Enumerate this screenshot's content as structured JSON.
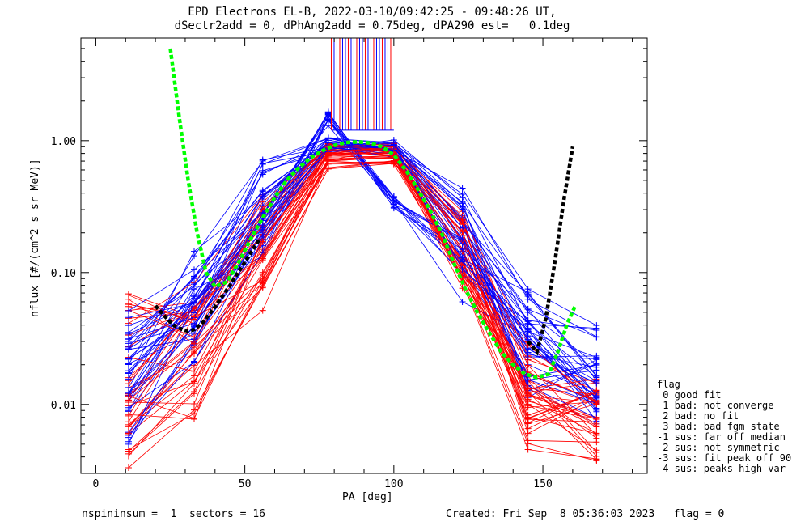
{
  "header": {
    "title_line1": "EPD Electrons EL-B, 2022-03-10/09:42:25 - 09:48:26 UT,",
    "title_line2": "dSectr2add = 0, dPhAng2add = 0.75deg, dPA290_est=   0.1deg"
  },
  "footer": {
    "left": "nspininsum =  1  sectors = 16",
    "right": "Created: Fri Sep  8 05:36:03 2023   flag = 0"
  },
  "legend": {
    "title": "flag",
    "items": [
      " 0 good fit",
      " 1 bad: not converge",
      " 2 bad: no fit",
      " 3 bad: bad fgm state",
      "-1 sus: far off median",
      "-2 sus: not symmetric",
      "-3 sus: fit peak off 90",
      "-4 sus: peaks high var"
    ]
  },
  "chart_data": {
    "type": "line",
    "xlabel": "PA [deg]",
    "ylabel": "nflux [#/(cm^2 s sr MeV)]",
    "xlim": [
      -5,
      185
    ],
    "ylim": [
      0.003,
      6
    ],
    "yscale": "log",
    "x_ticks": [
      0,
      50,
      100,
      150
    ],
    "y_ticks": [
      {
        "value": 0.01,
        "label": "0.01"
      },
      {
        "value": 0.1,
        "label": "0.10"
      },
      {
        "value": 1.0,
        "label": "1.00"
      }
    ],
    "pa_sectors": [
      11,
      33,
      56,
      78,
      100,
      123,
      145,
      168
    ],
    "series": [
      {
        "color": "#0000ff",
        "values": [
          0.018,
          0.06,
          0.3,
          0.85,
          0.85,
          0.2,
          0.02,
          0.012
        ]
      },
      {
        "color": "#ff0000",
        "values": [
          0.012,
          0.03,
          0.15,
          0.8,
          0.8,
          0.15,
          0.012,
          0.008
        ]
      },
      {
        "color": "#0000ff",
        "values": [
          0.03,
          0.09,
          0.42,
          0.95,
          0.9,
          0.25,
          0.05,
          0.02
        ]
      },
      {
        "color": "#ff0000",
        "values": [
          0.006,
          0.015,
          0.1,
          0.7,
          0.75,
          0.12,
          0.008,
          0.006
        ]
      },
      {
        "color": "#0000ff",
        "values": [
          0.009,
          0.04,
          0.2,
          1.45,
          0.33,
          0.1,
          0.03,
          0.015
        ]
      },
      {
        "color": "#ff0000",
        "values": [
          0.045,
          0.05,
          0.25,
          0.9,
          0.85,
          0.18,
          0.015,
          0.01
        ]
      }
    ],
    "fit_green": {
      "color": "#00ff00",
      "x": [
        25,
        28,
        31,
        34,
        37,
        40,
        44,
        48,
        52,
        56,
        60,
        64,
        68,
        72,
        76,
        80,
        84,
        88,
        92,
        96,
        100,
        104,
        108,
        112,
        116,
        120,
        124,
        128,
        132,
        136,
        140,
        144,
        148,
        152,
        155,
        158,
        161
      ],
      "values": [
        5.0,
        1.5,
        0.5,
        0.2,
        0.1,
        0.078,
        0.085,
        0.12,
        0.18,
        0.26,
        0.37,
        0.5,
        0.62,
        0.74,
        0.84,
        0.92,
        0.97,
        0.98,
        0.96,
        0.9,
        0.78,
        0.6,
        0.43,
        0.3,
        0.2,
        0.12,
        0.075,
        0.05,
        0.035,
        0.025,
        0.02,
        0.017,
        0.016,
        0.017,
        0.025,
        0.04,
        0.057
      ]
    },
    "fit_black": {
      "color": "#000000",
      "x": [
        20,
        23,
        26,
        29,
        31,
        33,
        36,
        40,
        45,
        50,
        55,
        145,
        148,
        151,
        154,
        157,
        160
      ],
      "values": [
        0.056,
        0.047,
        0.04,
        0.037,
        0.036,
        0.037,
        0.042,
        0.055,
        0.08,
        0.12,
        0.18,
        0.03,
        0.025,
        0.045,
        0.12,
        0.35,
        0.9
      ]
    }
  }
}
